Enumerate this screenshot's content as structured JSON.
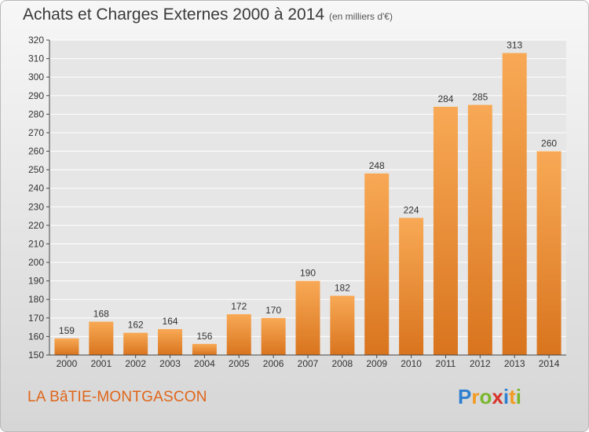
{
  "title": "Achats et Charges Externes 2000 à 2014",
  "subtitle": "(en milliers d'€)",
  "place": "LA BâTIE-MONTGASCON",
  "logo": {
    "letters": [
      "P",
      "r",
      "o",
      "x",
      "i",
      "t",
      "i"
    ],
    "colors": [
      "#2f7fd0",
      "#f39a1f",
      "#7ab72d",
      "#d8322a",
      "#2f7fd0",
      "#f39a1f",
      "#7ab72d"
    ]
  },
  "colors": {
    "bar_top": "#f8a955",
    "bar_bottom": "#d9741e",
    "label": "#333333",
    "axis": "#444444",
    "grid": "#ffffff"
  },
  "chart_data": {
    "type": "bar",
    "categories": [
      "2000",
      "2001",
      "2002",
      "2003",
      "2004",
      "2005",
      "2006",
      "2007",
      "2008",
      "2009",
      "2010",
      "2011",
      "2012",
      "2013",
      "2014"
    ],
    "values": [
      159,
      168,
      162,
      164,
      156,
      172,
      170,
      190,
      182,
      248,
      224,
      284,
      285,
      313,
      260
    ],
    "ylim": [
      150,
      320
    ],
    "yticks": [
      150,
      160,
      170,
      180,
      190,
      200,
      210,
      220,
      230,
      240,
      250,
      260,
      270,
      280,
      290,
      300,
      310,
      320
    ],
    "grid": true,
    "data_labels": true
  }
}
